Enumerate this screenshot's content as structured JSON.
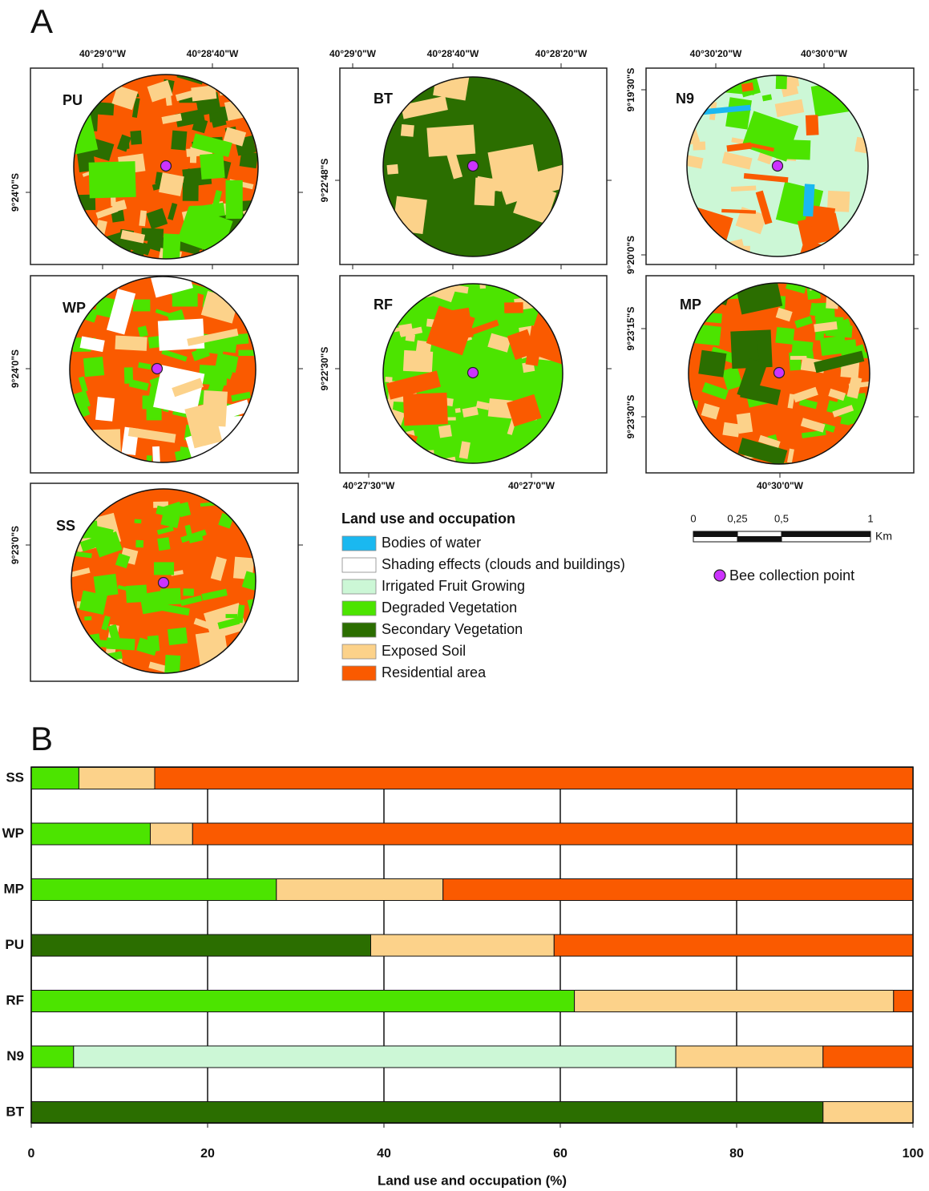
{
  "panel_labels": {
    "a": "A",
    "b": "B"
  },
  "maps": [
    {
      "label": "PU",
      "top_labels": [
        "40°29'0\"W",
        "40°28'40\"W"
      ],
      "left_labels": [
        "9°24'0\"S"
      ],
      "bottom_labels": []
    },
    {
      "label": "BT",
      "top_labels": [
        "40°29'0\"W",
        "40°28'40\"W",
        "40°28'20\"W"
      ],
      "left_labels": [
        "9°22'48\"S"
      ],
      "bottom_labels": []
    },
    {
      "label": "N9",
      "top_labels": [
        "40°30'20\"W",
        "40°30'0\"W"
      ],
      "left_labels": [
        "9°19'30\"S",
        "9°20'0\"S"
      ],
      "bottom_labels": []
    },
    {
      "label": "WP",
      "top_labels": [],
      "left_labels": [
        "9°24'0\"S"
      ],
      "bottom_labels": []
    },
    {
      "label": "RF",
      "top_labels": [],
      "left_labels": [
        "9°22'30\"S"
      ],
      "bottom_labels": [
        "40°27'30\"W",
        "40°27'0\"W"
      ]
    },
    {
      "label": "MP",
      "top_labels": [],
      "left_labels": [
        "9°23'15\"S",
        "9°23'30\"S"
      ],
      "bottom_labels": [
        "40°30'0\"W"
      ]
    },
    {
      "label": "SS",
      "top_labels": [],
      "left_labels": [
        "9°23'0\"S"
      ],
      "bottom_labels": []
    }
  ],
  "legend_title": "Land use and occupation",
  "scale": {
    "ticks": [
      "0",
      "0,25",
      "0,5",
      "1"
    ],
    "unit": "Km"
  },
  "bee_label": "Bee collection point",
  "chart_data": {
    "type": "bar",
    "orientation": "horizontal",
    "stacked": true,
    "categories": [
      "SS",
      "WP",
      "MP",
      "PU",
      "RF",
      "N9",
      "BT"
    ],
    "series": [
      {
        "name": "Secondary Vegetation",
        "color": "#2b6e00",
        "values": [
          null,
          null,
          null,
          38.5,
          null,
          null,
          89.8
        ]
      },
      {
        "name": "Degraded Vegetation",
        "color": "#4ce400",
        "values": [
          5.4,
          13.5,
          27.8,
          null,
          61.6,
          4.8,
          null
        ]
      },
      {
        "name": "Irrigated Fruit Growing",
        "color": "#ccf7d6",
        "values": [
          null,
          null,
          null,
          null,
          null,
          68.3,
          null
        ]
      },
      {
        "name": "Exposed Soil",
        "color": "#fcd28a",
        "values": [
          8.6,
          4.8,
          18.9,
          20.8,
          36.2,
          16.7,
          10.2
        ]
      },
      {
        "name": "Residential area",
        "color": "#fa5a00",
        "values": [
          86,
          81.7,
          53.3,
          40.7,
          2.2,
          10.2,
          null
        ]
      },
      {
        "name": "Bodies of water",
        "color": "#1ab8f0",
        "values": [
          null,
          null,
          null,
          null,
          null,
          null,
          null
        ]
      },
      {
        "name": "Shading effects (clouds and buildings)",
        "color": "#ffffff",
        "values": [
          null,
          null,
          null,
          null,
          null,
          null,
          null
        ]
      }
    ],
    "xlim": [
      0,
      100
    ],
    "xticks": [
      0,
      20,
      40,
      60,
      80,
      100
    ],
    "xlabel": "Land use and occupation (%)",
    "grid": true
  }
}
